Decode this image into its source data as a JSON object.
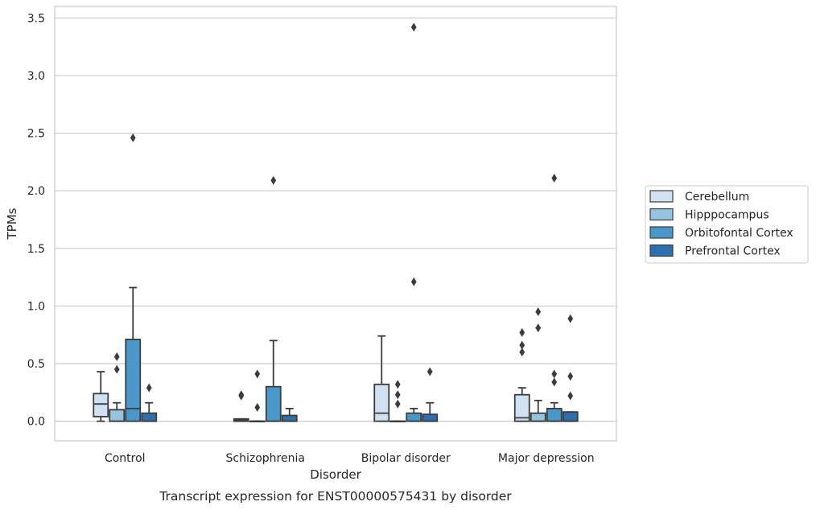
{
  "chart_data": {
    "type": "box",
    "title": "",
    "caption": "Transcript expression for ENST00000575431 by disorder",
    "xlabel": "Disorder",
    "ylabel": "TPMs",
    "ylim": [
      -0.17,
      3.6
    ],
    "yticks": [
      0.0,
      0.5,
      1.0,
      1.5,
      2.0,
      2.5,
      3.0,
      3.5
    ],
    "ytick_labels": [
      "0.0",
      "0.5",
      "1.0",
      "1.5",
      "2.0",
      "2.5",
      "3.0",
      "3.5"
    ],
    "grid": "horizontal",
    "legend_position": "right",
    "categories": [
      "Control",
      "Schizophrenia",
      "Bipolar disorder",
      "Major depression"
    ],
    "series": [
      {
        "name": "Cerebellum",
        "color": "#d0e1f2",
        "boxes": [
          {
            "q1": 0.04,
            "median": 0.15,
            "q3": 0.24,
            "whisker_low": 0.0,
            "whisker_high": 0.43,
            "outliers": []
          },
          {
            "q1": 0.0,
            "median": 0.01,
            "q3": 0.02,
            "whisker_low": 0.0,
            "whisker_high": 0.02,
            "outliers": [
              0.22,
              0.23
            ]
          },
          {
            "q1": 0.0,
            "median": 0.07,
            "q3": 0.32,
            "whisker_low": 0.0,
            "whisker_high": 0.74,
            "outliers": []
          },
          {
            "q1": 0.0,
            "median": 0.03,
            "q3": 0.23,
            "whisker_low": 0.0,
            "whisker_high": 0.29,
            "outliers": [
              0.6,
              0.66,
              0.77
            ]
          }
        ]
      },
      {
        "name": "Hipppocampus",
        "color": "#94c4df",
        "boxes": [
          {
            "q1": 0.0,
            "median": 0.0,
            "q3": 0.1,
            "whisker_low": 0.0,
            "whisker_high": 0.16,
            "outliers": [
              0.45,
              0.56
            ]
          },
          {
            "q1": 0.0,
            "median": 0.0,
            "q3": 0.0,
            "whisker_low": 0.0,
            "whisker_high": 0.0,
            "outliers": [
              0.12,
              0.41
            ]
          },
          {
            "q1": 0.0,
            "median": 0.0,
            "q3": 0.0,
            "whisker_low": 0.0,
            "whisker_high": 0.0,
            "outliers": [
              0.15,
              0.23,
              0.32
            ]
          },
          {
            "q1": 0.0,
            "median": 0.0,
            "q3": 0.07,
            "whisker_low": 0.0,
            "whisker_high": 0.18,
            "outliers": [
              0.81,
              0.95
            ]
          }
        ]
      },
      {
        "name": "Orbitofontal Cortex",
        "color": "#4a98c9",
        "boxes": [
          {
            "q1": 0.0,
            "median": 0.11,
            "q3": 0.71,
            "whisker_low": 0.0,
            "whisker_high": 1.16,
            "outliers": [
              2.46
            ]
          },
          {
            "q1": 0.0,
            "median": 0.0,
            "q3": 0.3,
            "whisker_low": 0.0,
            "whisker_high": 0.7,
            "outliers": [
              2.09
            ]
          },
          {
            "q1": 0.0,
            "median": 0.0,
            "q3": 0.07,
            "whisker_low": 0.0,
            "whisker_high": 0.11,
            "outliers": [
              1.21,
              3.42
            ]
          },
          {
            "q1": 0.0,
            "median": 0.0,
            "q3": 0.11,
            "whisker_low": 0.0,
            "whisker_high": 0.16,
            "outliers": [
              0.34,
              0.41,
              2.11
            ]
          }
        ]
      },
      {
        "name": "Prefrontal Cortex",
        "color": "#2e6fae",
        "boxes": [
          {
            "q1": 0.0,
            "median": 0.0,
            "q3": 0.07,
            "whisker_low": 0.0,
            "whisker_high": 0.16,
            "outliers": [
              0.29
            ]
          },
          {
            "q1": 0.0,
            "median": 0.0,
            "q3": 0.05,
            "whisker_low": 0.0,
            "whisker_high": 0.11,
            "outliers": []
          },
          {
            "q1": 0.0,
            "median": 0.0,
            "q3": 0.06,
            "whisker_low": 0.0,
            "whisker_high": 0.16,
            "outliers": [
              0.43
            ]
          },
          {
            "q1": 0.0,
            "median": 0.0,
            "q3": 0.08,
            "whisker_low": 0.0,
            "whisker_high": 0.08,
            "outliers": [
              0.22,
              0.39,
              0.89
            ]
          }
        ]
      }
    ]
  }
}
